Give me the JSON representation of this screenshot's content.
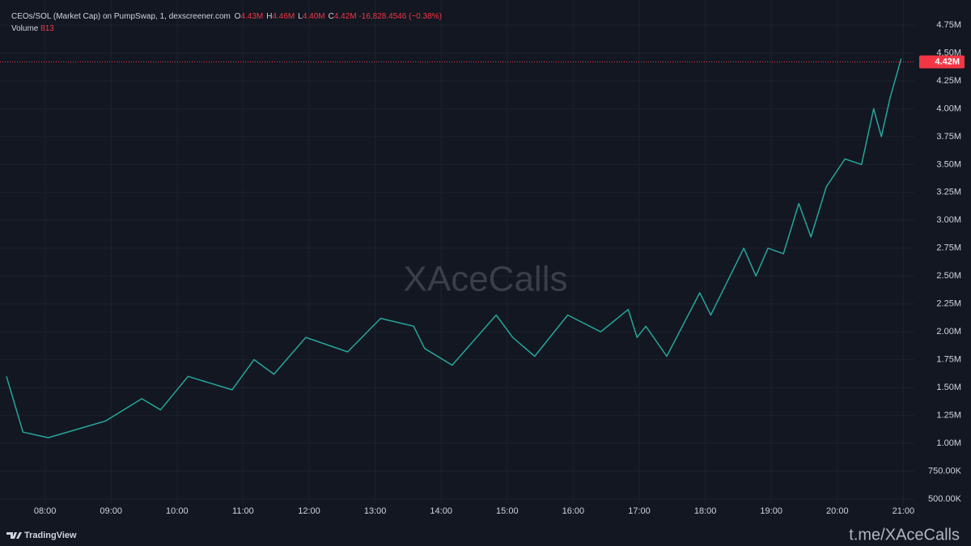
{
  "chart_data": {
    "type": "line",
    "header": {
      "title": "CEOs/SOL (Market Cap) on PumpSwap, 1, dexscreener.com",
      "ohlc": [
        {
          "key": "O",
          "value": "4.43M"
        },
        {
          "key": "H",
          "value": "4.46M"
        },
        {
          "key": "L",
          "value": "4.40M"
        },
        {
          "key": "C",
          "value": "4.42M"
        }
      ],
      "change": "-16,828.4546 (−0.38%)",
      "volume_label": "Volume",
      "volume_value": "813"
    },
    "watermark": "XAceCalls",
    "brand": "TradingView",
    "credit": "t.me/XAceCalls",
    "x": [
      "07:25",
      "07:40",
      "08:03",
      "08:55",
      "09:28",
      "09:45",
      "10:10",
      "10:50",
      "11:10",
      "11:28",
      "11:57",
      "12:35",
      "13:05",
      "13:35",
      "13:45",
      "14:10",
      "14:50",
      "15:05",
      "15:25",
      "15:55",
      "16:25",
      "16:50",
      "16:58",
      "17:06",
      "17:25",
      "17:55",
      "18:05",
      "18:35",
      "18:46",
      "18:57",
      "19:11",
      "19:25",
      "19:36",
      "19:50",
      "20:07",
      "20:22",
      "20:33",
      "20:40",
      "20:48",
      "20:58"
    ],
    "values": [
      1600000,
      1100000,
      1050000,
      1200000,
      1400000,
      1300000,
      1600000,
      1480000,
      1750000,
      1620000,
      1950000,
      1820000,
      2120000,
      2050000,
      1850000,
      1700000,
      2150000,
      1950000,
      1780000,
      2150000,
      2000000,
      2200000,
      1950000,
      2050000,
      1780000,
      2350000,
      2150000,
      2750000,
      2500000,
      2750000,
      2700000,
      3150000,
      2850000,
      3300000,
      3550000,
      3500000,
      4000000,
      3750000,
      4100000,
      4450000
    ],
    "color": "#26a69a",
    "xlim": [
      "07:25",
      "21:10"
    ],
    "xticks": [
      "08:00",
      "09:00",
      "10:00",
      "11:00",
      "12:00",
      "13:00",
      "14:00",
      "15:00",
      "16:00",
      "17:00",
      "18:00",
      "19:00",
      "20:00",
      "21:00"
    ],
    "ylim": [
      478000,
      4975000
    ],
    "yticks": [
      {
        "value": 500000,
        "label": "500.00K"
      },
      {
        "value": 750000,
        "label": "750.00K"
      },
      {
        "value": 1000000,
        "label": "1.00M"
      },
      {
        "value": 1250000,
        "label": "1.25M"
      },
      {
        "value": 1500000,
        "label": "1.50M"
      },
      {
        "value": 1750000,
        "label": "1.75M"
      },
      {
        "value": 2000000,
        "label": "2.00M"
      },
      {
        "value": 2250000,
        "label": "2.25M"
      },
      {
        "value": 2500000,
        "label": "2.50M"
      },
      {
        "value": 2750000,
        "label": "2.75M"
      },
      {
        "value": 3000000,
        "label": "3.00M"
      },
      {
        "value": 3250000,
        "label": "3.25M"
      },
      {
        "value": 3500000,
        "label": "3.50M"
      },
      {
        "value": 3750000,
        "label": "3.75M"
      },
      {
        "value": 4000000,
        "label": "4.00M"
      },
      {
        "value": 4250000,
        "label": "4.25M"
      },
      {
        "value": 4500000,
        "label": "4.50M"
      },
      {
        "value": 4750000,
        "label": "4.75M"
      }
    ],
    "last_price": {
      "value": 4420000,
      "label": "4.42M"
    },
    "last_price_color": "#f23645",
    "grid": true
  }
}
